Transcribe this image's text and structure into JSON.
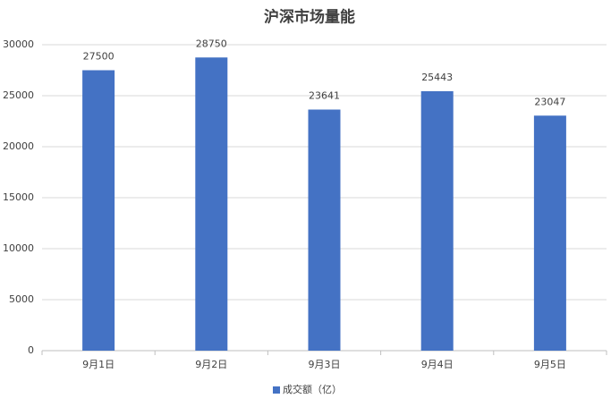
{
  "chart_data": {
    "type": "bar",
    "title": "沪深市场量能",
    "categories": [
      "9月1日",
      "9月2日",
      "9月3日",
      "9月4日",
      "9月5日"
    ],
    "series": [
      {
        "name": "成交额（亿）",
        "color": "#4472c4",
        "values": [
          27500,
          28750,
          23641,
          25443,
          23047
        ]
      }
    ],
    "ylim": [
      0,
      30000
    ],
    "yticks": [
      0,
      5000,
      10000,
      15000,
      20000,
      25000,
      30000
    ],
    "grid": true,
    "data_labels": true,
    "legend": "bottom"
  }
}
